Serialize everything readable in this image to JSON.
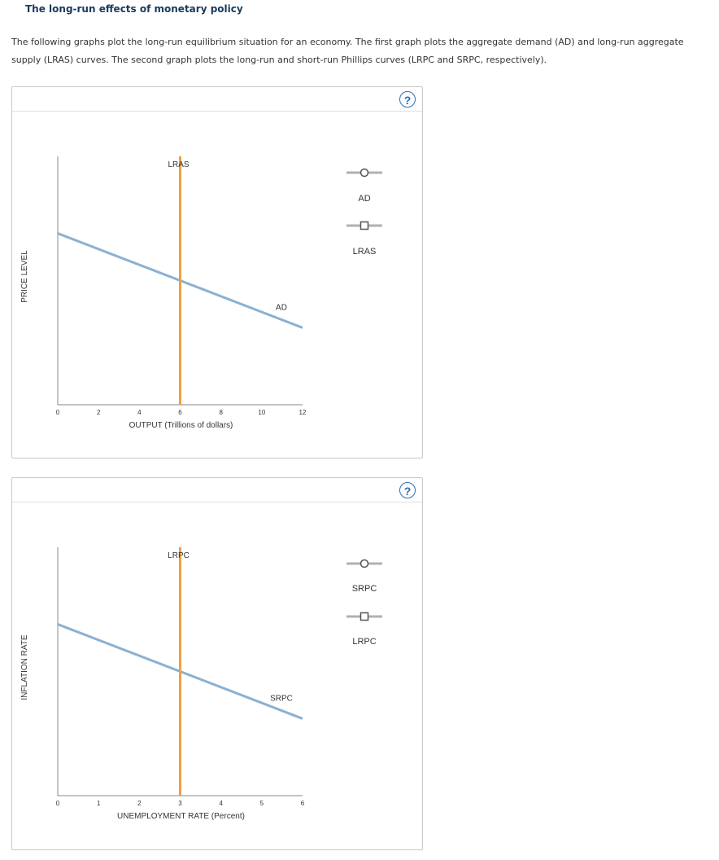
{
  "header": {
    "title": "The long-run effects of monetary policy",
    "intro": "The following graphs plot the long-run equilibrium situation for an economy. The first graph plots the aggregate demand (AD) and long-run aggregate supply (LRAS) curves. The second graph plots the long-run and short-run Phillips curves (LRPC and SRPC, respectively)."
  },
  "help_label": "?",
  "colors": {
    "blue_line": "#8cb1d2",
    "orange_line": "#f0a040",
    "axis": "#888888",
    "legend_gray": "#b0b0b0"
  },
  "chart_data": [
    {
      "type": "line",
      "ylabel": "PRICE LEVEL",
      "xlabel": "OUTPUT (Trillions of dollars)",
      "xlim": [
        0,
        12
      ],
      "xticks": [
        "0",
        "2",
        "4",
        "6",
        "8",
        "10",
        "12"
      ],
      "series": [
        {
          "name": "AD",
          "shape": "circle",
          "color": "#8cb1d2",
          "x": [
            0,
            12
          ],
          "y_frac": [
            0.69,
            0.31
          ]
        },
        {
          "name": "LRAS",
          "shape": "square",
          "color": "#f0a040",
          "vertical_x": 6
        }
      ],
      "curve_labels": {
        "AD": "AD",
        "LRAS": "LRAS"
      },
      "legend": [
        "AD",
        "LRAS"
      ],
      "legend_placement": "right"
    },
    {
      "type": "line",
      "ylabel": "INFLATION RATE",
      "xlabel": "UNEMPLOYMENT RATE (Percent)",
      "xlim": [
        0,
        6
      ],
      "xticks": [
        "0",
        "1",
        "2",
        "3",
        "4",
        "5",
        "6"
      ],
      "series": [
        {
          "name": "SRPC",
          "shape": "circle",
          "color": "#8cb1d2",
          "x": [
            0,
            6
          ],
          "y_frac": [
            0.69,
            0.31
          ]
        },
        {
          "name": "LRPC",
          "shape": "square",
          "color": "#f0a040",
          "vertical_x": 3
        }
      ],
      "curve_labels": {
        "SRPC": "SRPC",
        "LRPC": "LRPC"
      },
      "legend": [
        "SRPC",
        "LRPC"
      ],
      "legend_placement": "right"
    }
  ]
}
